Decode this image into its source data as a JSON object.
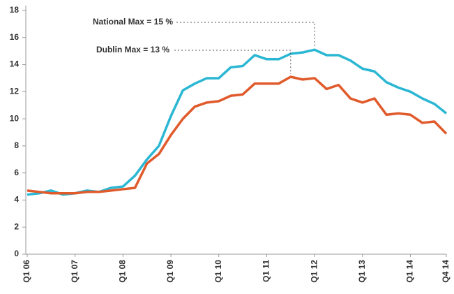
{
  "chart_data": {
    "type": "line",
    "categories": [
      "Q1 06",
      null,
      null,
      null,
      "Q1 07",
      null,
      null,
      null,
      "Q1 08",
      null,
      null,
      null,
      "Q1 09",
      null,
      null,
      null,
      "Q1 10",
      null,
      null,
      null,
      "Q1 11",
      null,
      null,
      null,
      "Q1 12",
      null,
      null,
      null,
      "Q1 13",
      null,
      null,
      null,
      "Q1 14",
      null,
      null,
      "Q4 14"
    ],
    "series": [
      {
        "color": "#2bb7d3",
        "values": [
          4.4,
          4.5,
          4.7,
          4.4,
          4.5,
          4.7,
          4.6,
          4.9,
          5.0,
          5.8,
          7.0,
          8.0,
          10.2,
          12.1,
          12.6,
          13.0,
          13.0,
          13.8,
          13.9,
          14.7,
          14.4,
          14.4,
          14.8,
          14.9,
          15.1,
          14.7,
          14.7,
          14.3,
          13.7,
          13.5,
          12.7,
          12.3,
          12.0,
          11.5,
          11.1,
          10.4
        ]
      },
      {
        "color": "#e05a2b",
        "values": [
          4.7,
          4.6,
          4.5,
          4.5,
          4.5,
          4.6,
          4.6,
          4.7,
          4.8,
          4.9,
          6.7,
          7.4,
          8.8,
          10.0,
          10.9,
          11.2,
          11.3,
          11.7,
          11.8,
          12.6,
          12.6,
          12.6,
          13.1,
          12.9,
          13.0,
          12.2,
          12.5,
          11.5,
          11.2,
          11.5,
          10.3,
          10.4,
          10.3,
          9.7,
          9.8,
          8.9
        ]
      }
    ],
    "annotations": [
      {
        "text": "National Max = 15 %"
      },
      {
        "text": "Dublin Max = 13 %"
      }
    ],
    "ylim": [
      0,
      18
    ],
    "yticks": [
      0,
      2,
      4,
      6,
      8,
      10,
      12,
      14,
      16,
      18
    ],
    "grid": false
  }
}
